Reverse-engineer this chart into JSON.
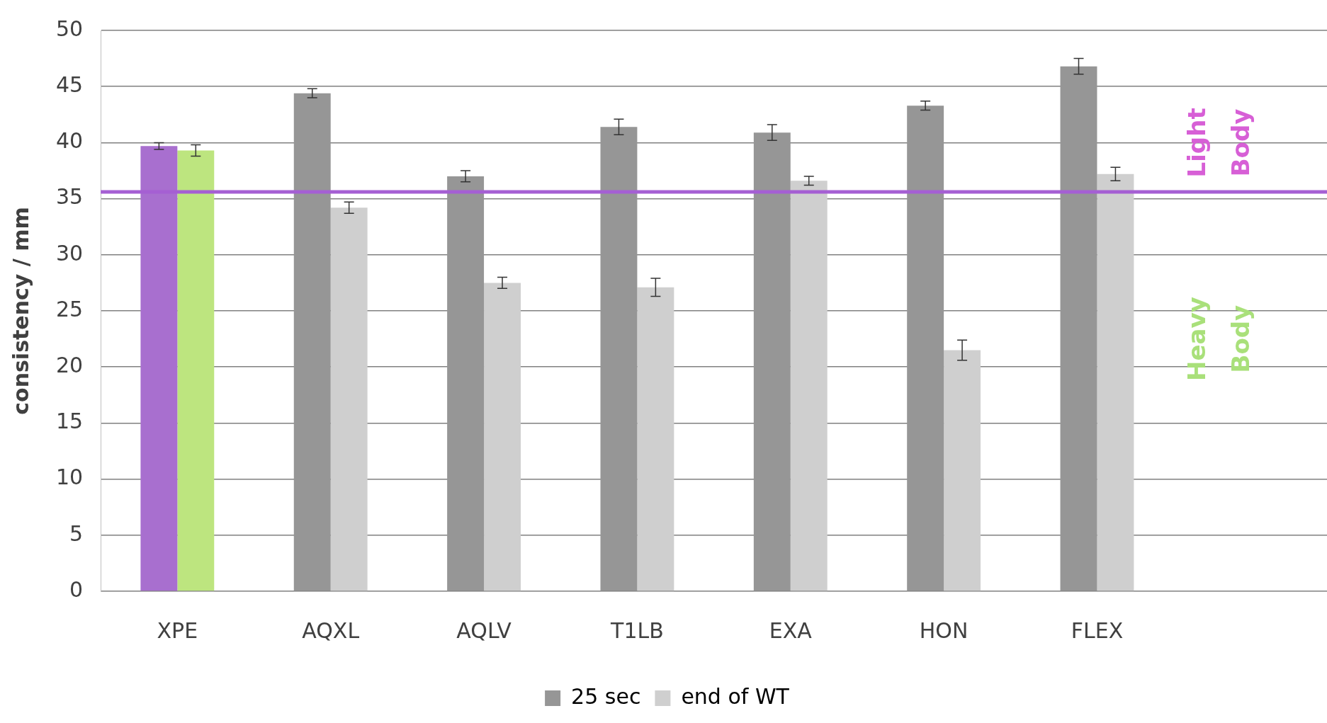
{
  "chart_data": {
    "type": "bar",
    "ylabel": "consistency / mm",
    "categories": [
      "XPE",
      "AQXL",
      "AQLV",
      "T1LB",
      "EXA",
      "HON",
      "FLEX",
      null
    ],
    "series": [
      {
        "name": "25 sec",
        "color": "#969696",
        "colors": [
          "#a86fcf",
          "#969696",
          "#969696",
          "#969696",
          "#969696",
          "#969696",
          "#969696",
          null
        ],
        "values": [
          39.7,
          44.4,
          37.0,
          41.4,
          40.9,
          43.3,
          46.8,
          null
        ],
        "errors": [
          0.3,
          0.4,
          0.5,
          0.7,
          0.7,
          0.4,
          0.7,
          null
        ]
      },
      {
        "name": "end of WT",
        "color": "#cfcfcf",
        "colors": [
          "#bde57f",
          "#cfcfcf",
          "#cfcfcf",
          "#cfcfcf",
          "#cfcfcf",
          "#cfcfcf",
          "#cfcfcf",
          null
        ],
        "values": [
          39.3,
          34.2,
          27.5,
          27.1,
          36.6,
          21.5,
          37.2,
          null
        ],
        "errors": [
          0.5,
          0.5,
          0.5,
          0.8,
          0.4,
          0.9,
          0.6,
          null
        ]
      }
    ],
    "ylim": [
      0,
      50
    ],
    "yticks": [
      0,
      5,
      10,
      15,
      20,
      25,
      30,
      35,
      40,
      45,
      50
    ],
    "grid": "y",
    "legend": "bottom",
    "ref_lines": [
      {
        "axis": "y",
        "value": 35.6,
        "color": "#a55fd3"
      }
    ],
    "annotations": [
      "Light Body",
      "Heavy Body"
    ]
  }
}
